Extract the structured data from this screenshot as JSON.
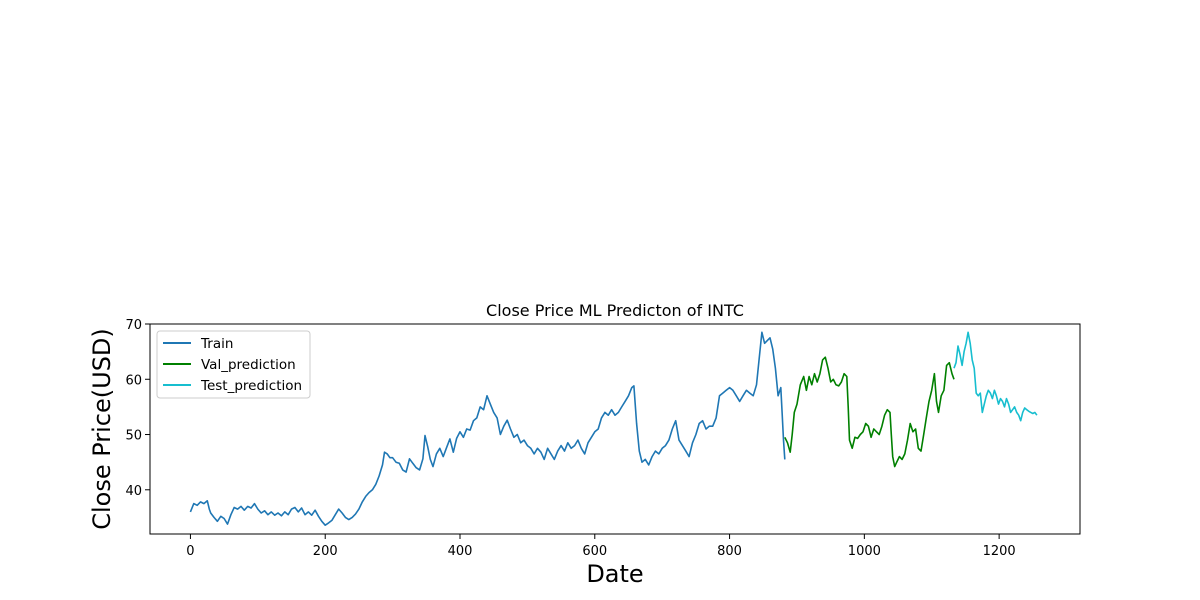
{
  "chart_data": {
    "type": "line",
    "title": "Close Price ML Predicton of INTC",
    "xlabel": "Date",
    "ylabel": "Close Price(USD)",
    "xlim": [
      -60,
      1320
    ],
    "ylim": [
      32,
      70
    ],
    "xticks": [
      0,
      200,
      400,
      600,
      800,
      1000,
      1200
    ],
    "yticks": [
      40,
      50,
      60,
      70
    ],
    "grid": false,
    "legend_position": "upper-left",
    "series": [
      {
        "name": "Train",
        "color": "#1f77b4",
        "points": [
          [
            0,
            36.0
          ],
          [
            5,
            37.5
          ],
          [
            10,
            37.2
          ],
          [
            15,
            37.8
          ],
          [
            20,
            37.5
          ],
          [
            25,
            38.0
          ],
          [
            28,
            36.5
          ],
          [
            30,
            35.8
          ],
          [
            35,
            35.0
          ],
          [
            40,
            34.3
          ],
          [
            45,
            35.2
          ],
          [
            50,
            34.8
          ],
          [
            55,
            33.8
          ],
          [
            60,
            35.5
          ],
          [
            65,
            36.8
          ],
          [
            70,
            36.5
          ],
          [
            75,
            37.0
          ],
          [
            80,
            36.3
          ],
          [
            85,
            37.0
          ],
          [
            90,
            36.7
          ],
          [
            95,
            37.5
          ],
          [
            100,
            36.5
          ],
          [
            105,
            35.8
          ],
          [
            110,
            36.2
          ],
          [
            115,
            35.5
          ],
          [
            120,
            36.0
          ],
          [
            125,
            35.4
          ],
          [
            130,
            35.8
          ],
          [
            135,
            35.3
          ],
          [
            140,
            36.0
          ],
          [
            145,
            35.5
          ],
          [
            150,
            36.5
          ],
          [
            155,
            36.8
          ],
          [
            160,
            36.0
          ],
          [
            165,
            36.7
          ],
          [
            170,
            35.5
          ],
          [
            175,
            36.0
          ],
          [
            180,
            35.4
          ],
          [
            185,
            36.3
          ],
          [
            190,
            35.2
          ],
          [
            195,
            34.3
          ],
          [
            200,
            33.6
          ],
          [
            205,
            34.0
          ],
          [
            210,
            34.5
          ],
          [
            215,
            35.5
          ],
          [
            220,
            36.5
          ],
          [
            225,
            35.8
          ],
          [
            230,
            35.0
          ],
          [
            235,
            34.6
          ],
          [
            240,
            35.0
          ],
          [
            245,
            35.6
          ],
          [
            250,
            36.5
          ],
          [
            255,
            37.8
          ],
          [
            260,
            38.8
          ],
          [
            265,
            39.5
          ],
          [
            270,
            40.0
          ],
          [
            275,
            41.0
          ],
          [
            280,
            42.5
          ],
          [
            285,
            44.5
          ],
          [
            288,
            46.8
          ],
          [
            292,
            46.5
          ],
          [
            296,
            45.8
          ],
          [
            300,
            45.8
          ],
          [
            305,
            45.0
          ],
          [
            310,
            44.8
          ],
          [
            315,
            43.6
          ],
          [
            320,
            43.2
          ],
          [
            325,
            45.6
          ],
          [
            330,
            44.8
          ],
          [
            335,
            44.0
          ],
          [
            340,
            43.6
          ],
          [
            345,
            45.6
          ],
          [
            348,
            49.8
          ],
          [
            352,
            47.8
          ],
          [
            356,
            45.5
          ],
          [
            360,
            44.2
          ],
          [
            365,
            46.5
          ],
          [
            370,
            47.5
          ],
          [
            375,
            46.0
          ],
          [
            380,
            47.6
          ],
          [
            385,
            49.2
          ],
          [
            390,
            46.8
          ],
          [
            395,
            49.3
          ],
          [
            400,
            50.5
          ],
          [
            405,
            49.5
          ],
          [
            410,
            51.0
          ],
          [
            415,
            50.8
          ],
          [
            420,
            52.5
          ],
          [
            425,
            53.0
          ],
          [
            430,
            55.0
          ],
          [
            435,
            54.5
          ],
          [
            440,
            57.0
          ],
          [
            445,
            55.5
          ],
          [
            450,
            54.0
          ],
          [
            455,
            53.0
          ],
          [
            460,
            50.0
          ],
          [
            465,
            51.5
          ],
          [
            470,
            52.6
          ],
          [
            475,
            51.0
          ],
          [
            480,
            49.5
          ],
          [
            485,
            50.0
          ],
          [
            490,
            48.5
          ],
          [
            495,
            49.0
          ],
          [
            500,
            48.0
          ],
          [
            505,
            47.5
          ],
          [
            510,
            46.5
          ],
          [
            515,
            47.5
          ],
          [
            520,
            46.8
          ],
          [
            525,
            45.5
          ],
          [
            530,
            47.5
          ],
          [
            535,
            46.5
          ],
          [
            540,
            45.5
          ],
          [
            545,
            47.0
          ],
          [
            550,
            48.0
          ],
          [
            555,
            47.0
          ],
          [
            560,
            48.5
          ],
          [
            565,
            47.5
          ],
          [
            570,
            48.0
          ],
          [
            575,
            49.0
          ],
          [
            580,
            47.5
          ],
          [
            585,
            46.5
          ],
          [
            590,
            48.5
          ],
          [
            595,
            49.5
          ],
          [
            600,
            50.5
          ],
          [
            605,
            51.0
          ],
          [
            610,
            53.0
          ],
          [
            615,
            54.0
          ],
          [
            620,
            53.5
          ],
          [
            625,
            54.5
          ],
          [
            630,
            53.5
          ],
          [
            635,
            54.0
          ],
          [
            640,
            55.0
          ],
          [
            645,
            56.0
          ],
          [
            650,
            57.0
          ],
          [
            655,
            58.5
          ],
          [
            658,
            58.8
          ],
          [
            662,
            52.0
          ],
          [
            666,
            47.0
          ],
          [
            670,
            45.0
          ],
          [
            675,
            45.5
          ],
          [
            680,
            44.5
          ],
          [
            685,
            46.0
          ],
          [
            690,
            47.0
          ],
          [
            695,
            46.5
          ],
          [
            700,
            47.5
          ],
          [
            705,
            48.0
          ],
          [
            710,
            49.0
          ],
          [
            715,
            51.0
          ],
          [
            720,
            52.5
          ],
          [
            725,
            49.0
          ],
          [
            730,
            48.0
          ],
          [
            735,
            47.0
          ],
          [
            740,
            46.0
          ],
          [
            745,
            48.5
          ],
          [
            750,
            50.0
          ],
          [
            755,
            52.0
          ],
          [
            760,
            52.5
          ],
          [
            765,
            51.0
          ],
          [
            770,
            51.5
          ],
          [
            775,
            51.5
          ],
          [
            780,
            53.0
          ],
          [
            785,
            57.0
          ],
          [
            790,
            57.5
          ],
          [
            795,
            58.0
          ],
          [
            800,
            58.5
          ],
          [
            805,
            58.0
          ],
          [
            810,
            57.0
          ],
          [
            815,
            56.0
          ],
          [
            820,
            57.0
          ],
          [
            825,
            58.0
          ],
          [
            830,
            57.5
          ],
          [
            835,
            57.0
          ],
          [
            840,
            59.0
          ],
          [
            845,
            65.0
          ],
          [
            848,
            68.5
          ],
          [
            852,
            66.5
          ],
          [
            856,
            67.0
          ],
          [
            860,
            67.5
          ],
          [
            864,
            65.5
          ],
          [
            868,
            62.0
          ],
          [
            872,
            57.0
          ],
          [
            876,
            58.5
          ],
          [
            878,
            54.0
          ],
          [
            880,
            49.0
          ],
          [
            882,
            45.5
          ]
        ]
      },
      {
        "name": "Val_prediction",
        "color": "#008000",
        "points": [
          [
            882,
            49.5
          ],
          [
            886,
            48.5
          ],
          [
            890,
            46.8
          ],
          [
            893,
            50.0
          ],
          [
            896,
            54.0
          ],
          [
            900,
            55.5
          ],
          [
            905,
            59.0
          ],
          [
            910,
            60.5
          ],
          [
            914,
            58.0
          ],
          [
            918,
            60.5
          ],
          [
            922,
            59.0
          ],
          [
            926,
            61.0
          ],
          [
            930,
            59.5
          ],
          [
            934,
            61.0
          ],
          [
            938,
            63.5
          ],
          [
            942,
            64.0
          ],
          [
            946,
            62.0
          ],
          [
            950,
            59.5
          ],
          [
            954,
            60.0
          ],
          [
            958,
            59.0
          ],
          [
            962,
            58.8
          ],
          [
            966,
            59.5
          ],
          [
            970,
            61.0
          ],
          [
            974,
            60.5
          ],
          [
            976,
            55.0
          ],
          [
            978,
            49.0
          ],
          [
            982,
            47.5
          ],
          [
            986,
            49.5
          ],
          [
            990,
            49.3
          ],
          [
            994,
            50.0
          ],
          [
            998,
            50.5
          ],
          [
            1002,
            52.0
          ],
          [
            1006,
            51.5
          ],
          [
            1010,
            49.5
          ],
          [
            1014,
            51.0
          ],
          [
            1018,
            50.5
          ],
          [
            1022,
            50.0
          ],
          [
            1026,
            51.5
          ],
          [
            1030,
            53.5
          ],
          [
            1034,
            54.5
          ],
          [
            1038,
            54.0
          ],
          [
            1040,
            50.0
          ],
          [
            1042,
            46.0
          ],
          [
            1045,
            44.2
          ],
          [
            1048,
            45.0
          ],
          [
            1052,
            46.0
          ],
          [
            1056,
            45.5
          ],
          [
            1060,
            46.5
          ],
          [
            1064,
            49.0
          ],
          [
            1068,
            52.0
          ],
          [
            1072,
            50.5
          ],
          [
            1076,
            51.0
          ],
          [
            1080,
            47.5
          ],
          [
            1084,
            47.0
          ],
          [
            1088,
            50.0
          ],
          [
            1092,
            53.0
          ],
          [
            1096,
            56.0
          ],
          [
            1100,
            58.0
          ],
          [
            1104,
            61.0
          ],
          [
            1107,
            56.0
          ],
          [
            1110,
            54.0
          ],
          [
            1114,
            57.0
          ],
          [
            1118,
            58.0
          ],
          [
            1122,
            62.5
          ],
          [
            1126,
            63.0
          ],
          [
            1130,
            61.0
          ],
          [
            1133,
            60.0
          ]
        ]
      },
      {
        "name": "Test_prediction",
        "color": "#17becf",
        "points": [
          [
            1133,
            62.0
          ],
          [
            1136,
            63.0
          ],
          [
            1139,
            66.0
          ],
          [
            1142,
            64.5
          ],
          [
            1145,
            62.5
          ],
          [
            1148,
            65.0
          ],
          [
            1151,
            66.5
          ],
          [
            1154,
            68.5
          ],
          [
            1157,
            66.5
          ],
          [
            1160,
            63.5
          ],
          [
            1163,
            62.0
          ],
          [
            1166,
            57.5
          ],
          [
            1169,
            57.0
          ],
          [
            1172,
            57.5
          ],
          [
            1175,
            54.0
          ],
          [
            1178,
            55.5
          ],
          [
            1181,
            57.0
          ],
          [
            1184,
            58.0
          ],
          [
            1187,
            57.5
          ],
          [
            1190,
            56.5
          ],
          [
            1193,
            58.0
          ],
          [
            1196,
            57.0
          ],
          [
            1199,
            55.5
          ],
          [
            1202,
            56.5
          ],
          [
            1205,
            56.0
          ],
          [
            1208,
            55.0
          ],
          [
            1211,
            56.5
          ],
          [
            1214,
            55.5
          ],
          [
            1217,
            54.0
          ],
          [
            1220,
            54.5
          ],
          [
            1223,
            55.0
          ],
          [
            1226,
            54.0
          ],
          [
            1229,
            53.5
          ],
          [
            1232,
            52.5
          ],
          [
            1235,
            54.0
          ],
          [
            1238,
            54.8
          ],
          [
            1241,
            54.5
          ],
          [
            1244,
            54.2
          ],
          [
            1247,
            54.0
          ],
          [
            1250,
            53.8
          ],
          [
            1253,
            54.0
          ],
          [
            1256,
            53.5
          ]
        ]
      }
    ]
  }
}
